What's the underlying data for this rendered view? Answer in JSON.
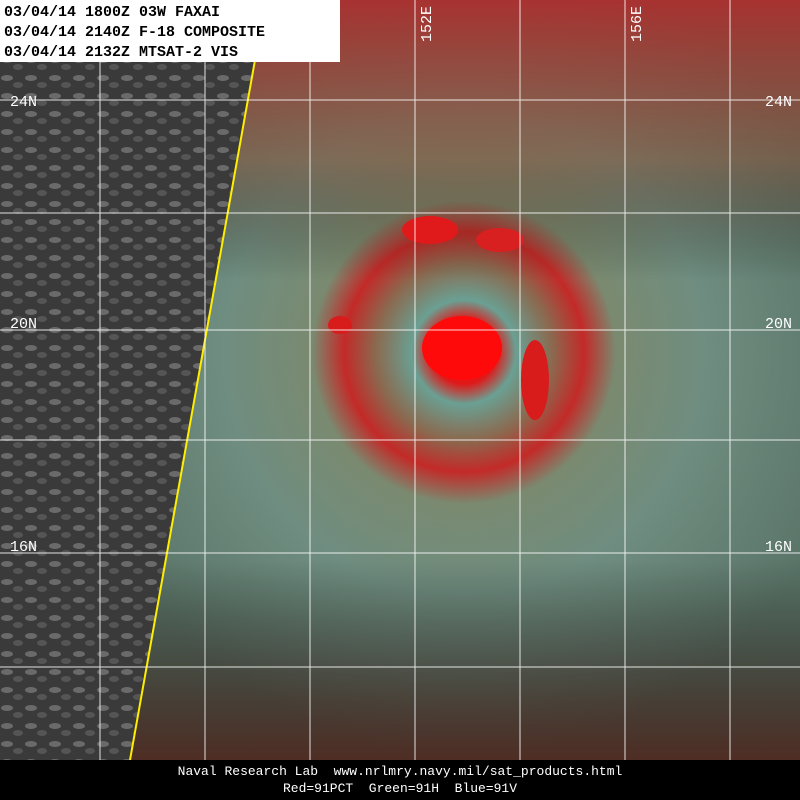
{
  "header": {
    "lines": [
      "03/04/14 1800Z 03W FAXAI",
      "03/04/14 2140Z F-18 COMPOSITE",
      "03/04/14 2132Z MTSAT-2 VIS"
    ]
  },
  "lat_labels": [
    "24N",
    "20N",
    "16N"
  ],
  "lon_labels": [
    "152E",
    "156E"
  ],
  "footer": {
    "lines": [
      "Naval Research Lab  www.nrlmry.navy.mil/sat_products.html",
      "Red=91PCT  Green=91H  Blue=91V"
    ]
  }
}
